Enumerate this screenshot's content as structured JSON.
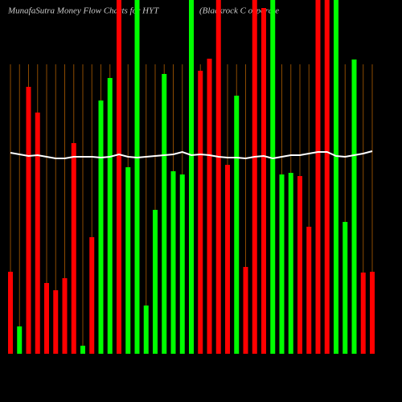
{
  "chart_data": {
    "type": "bar",
    "title": "MunafaSutra  Money Flow  Charts for HYT",
    "subtitle": "(Blackrock C orporate",
    "categories": [
      null,
      null,
      null,
      null,
      null,
      null,
      null,
      null,
      null,
      null,
      null,
      null,
      null,
      null,
      null,
      null,
      null,
      null,
      null,
      null,
      null,
      null,
      null,
      null,
      null,
      null,
      null,
      null,
      null,
      null,
      null,
      null,
      null,
      null,
      null,
      null,
      null,
      null,
      null,
      null,
      null
    ],
    "values": [
      102,
      34,
      332,
      300,
      88,
      79,
      94,
      262,
      10,
      145,
      315,
      343,
      440,
      232,
      440,
      60,
      179,
      348,
      227,
      223,
      440,
      352,
      367,
      440,
      235,
      321,
      108,
      440,
      430,
      440,
      223,
      225,
      221,
      158,
      440,
      440,
      440,
      164,
      366,
      101,
      102
    ],
    "bar_colors": [
      "#ff0000",
      "#00ff00",
      "#ff0000",
      "#ff0000",
      "#ff0000",
      "#ff0000",
      "#ff0000",
      "#ff0000",
      "#00ff00",
      "#ff0000",
      "#00ff00",
      "#00ff00",
      "#ff0000",
      "#00ff00",
      "#00ff00",
      "#00ff00",
      "#00ff00",
      "#00ff00",
      "#00ff00",
      "#00ff00",
      "#00ff00",
      "#ff0000",
      "#ff0000",
      "#ff0000",
      "#ff0000",
      "#00ff00",
      "#ff0000",
      "#ff0000",
      "#ff0000",
      "#00ff00",
      "#00ff00",
      "#00ff00",
      "#ff0000",
      "#ff0000",
      "#ff0000",
      "#ff0000",
      "#00ff00",
      "#00ff00",
      "#00ff00",
      "#ff0000",
      "#ff0000"
    ],
    "line": {
      "color": "#ffffff",
      "values": [
        250,
        248,
        246,
        247,
        245,
        243,
        243,
        245,
        245,
        245,
        244,
        245,
        248,
        245,
        244,
        245,
        246,
        247,
        248,
        251,
        247,
        248,
        247,
        245,
        244,
        244,
        243,
        245,
        246,
        243,
        245,
        247,
        247,
        249,
        251,
        251,
        246,
        245,
        247,
        249,
        252
      ]
    },
    "ylim": [
      0,
      440
    ],
    "grid": true,
    "grid_color": "#8b4a00",
    "background": "#000000"
  }
}
